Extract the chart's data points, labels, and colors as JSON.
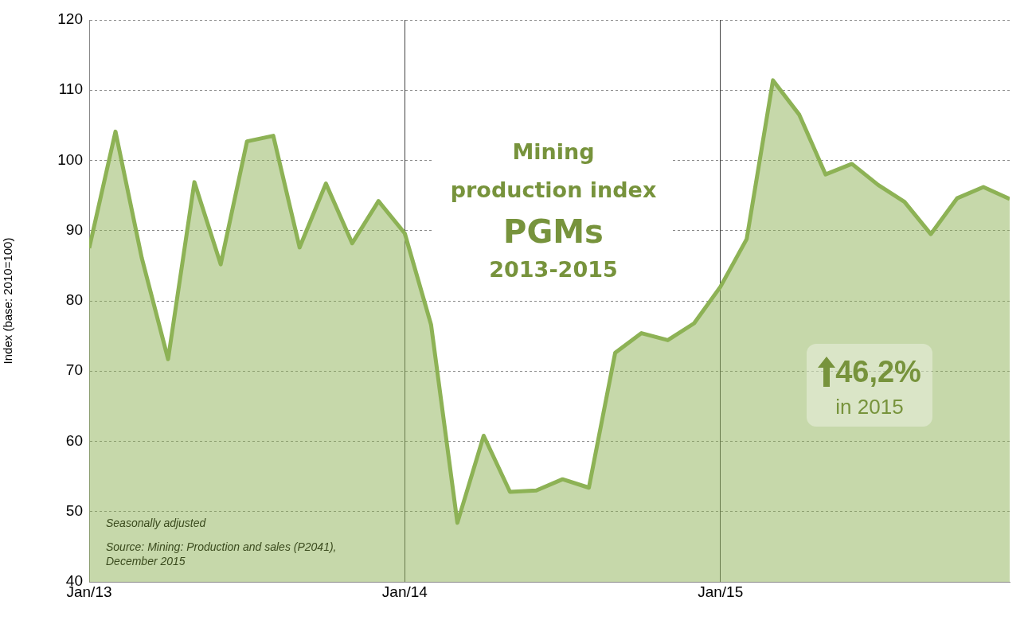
{
  "chart_data": {
    "type": "area",
    "title": "Mining production index",
    "subtitle": "PGMs",
    "ylabel": "Index (base: 2010=100)",
    "x": [
      "2013-01",
      "2013-02",
      "2013-03",
      "2013-04",
      "2013-05",
      "2013-06",
      "2013-07",
      "2013-08",
      "2013-09",
      "2013-10",
      "2013-11",
      "2013-12",
      "2014-01",
      "2014-02",
      "2014-03",
      "2014-04",
      "2014-05",
      "2014-06",
      "2014-07",
      "2014-08",
      "2014-09",
      "2014-10",
      "2014-11",
      "2014-12",
      "2015-01",
      "2015-02",
      "2015-03",
      "2015-04",
      "2015-05",
      "2015-06",
      "2015-07",
      "2015-08",
      "2015-09",
      "2015-10",
      "2015-11",
      "2015-12"
    ],
    "series": [
      {
        "color": "#8db255",
        "values": [
          87.5,
          104.1,
          86.1,
          71.7,
          96.9,
          85.2,
          102.7,
          103.5,
          87.6,
          96.7,
          88.2,
          94.2,
          89.6,
          76.6,
          48.4,
          60.8,
          52.8,
          53.0,
          54.6,
          53.4,
          72.6,
          75.4,
          74.4,
          76.8,
          82.0,
          88.8,
          111.4,
          106.5,
          98.0,
          99.5,
          96.5,
          94.1,
          89.5,
          94.6,
          96.2,
          94.5
        ]
      }
    ],
    "xlim": [
      "2013-01",
      "2015-12"
    ],
    "xticks": [
      {
        "value": "2013-01",
        "label": "Jan/13"
      },
      {
        "value": "2014-01",
        "label": "Jan/14"
      },
      {
        "value": "2015-01",
        "label": "Jan/15"
      }
    ],
    "ylim": [
      40,
      120
    ],
    "yticks": [
      40,
      50,
      60,
      70,
      80,
      90,
      100,
      110,
      120
    ],
    "grid": true,
    "legend": false,
    "marker": "none",
    "line_style": "solid",
    "annotations": [
      "2013-2015",
      "46,2%",
      "in 2015",
      "Seasonally adjusted",
      "Source: Mining: Production and sales (P2041), December 2015"
    ]
  }
}
